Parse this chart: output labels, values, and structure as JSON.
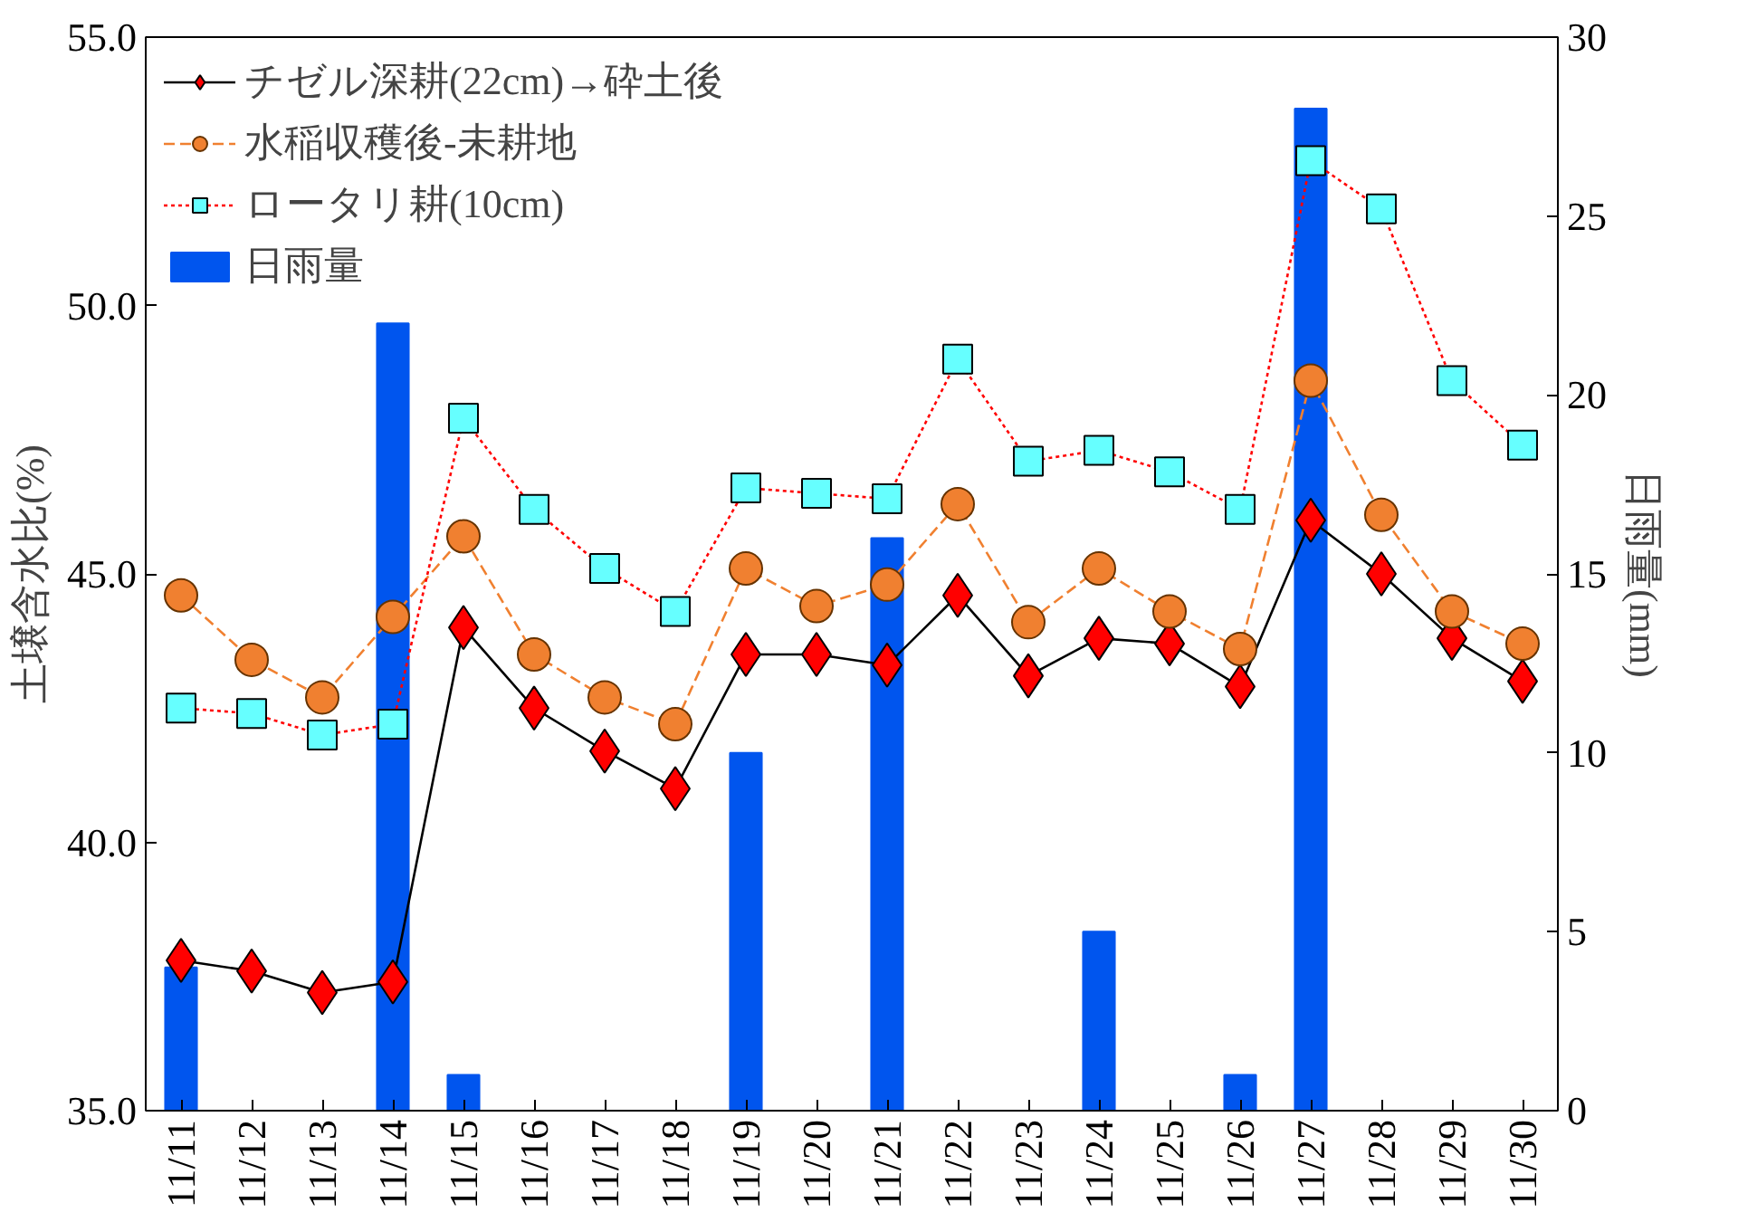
{
  "chart_data": {
    "type": "line",
    "categories": [
      "11/11",
      "11/12",
      "11/13",
      "11/14",
      "11/15",
      "11/16",
      "11/17",
      "11/18",
      "11/19",
      "11/20",
      "11/21",
      "11/22",
      "11/23",
      "11/24",
      "11/25",
      "11/26",
      "11/27",
      "11/28",
      "11/29",
      "11/30"
    ],
    "ylabel": "土壌含水比(%)",
    "y2label": "日雨量(mm)",
    "ylim": [
      35,
      55
    ],
    "yticks": [
      {
        "value": 35,
        "label": "35.0"
      },
      {
        "value": 40,
        "label": "40.0"
      },
      {
        "value": 45,
        "label": "45.0"
      },
      {
        "value": 50,
        "label": "50.0"
      },
      {
        "value": 55,
        "label": "55.0"
      }
    ],
    "y2lim": [
      0,
      30
    ],
    "y2ticks": [
      0,
      5,
      10,
      15,
      20,
      25,
      30
    ],
    "legend": "top left",
    "grid": false,
    "series": [
      {
        "name": "チゼル深耕(22cm)→砕土後",
        "marker": "diamond",
        "line_style": "solid",
        "color": "#ff0000",
        "values": [
          37.8,
          37.6,
          37.2,
          37.4,
          44.0,
          42.5,
          41.7,
          41.0,
          43.5,
          43.5,
          43.3,
          44.6,
          43.1,
          43.8,
          43.7,
          42.9,
          46.0,
          45.0,
          43.8,
          43.0
        ]
      },
      {
        "name": "水稲収穫後-未耕地",
        "marker": "circle",
        "line_style": "dashed",
        "color": "#f08030",
        "values": [
          44.6,
          43.4,
          42.7,
          44.2,
          45.7,
          43.5,
          42.7,
          42.2,
          45.1,
          44.4,
          44.8,
          46.3,
          44.1,
          45.1,
          44.3,
          43.6,
          48.6,
          46.1,
          44.3,
          43.7
        ]
      },
      {
        "name": "ロータリ耕(10cm)",
        "marker": "square",
        "line_style": "dotted",
        "color": "#66ffff",
        "values": [
          42.5,
          42.4,
          42.0,
          42.2,
          47.9,
          46.2,
          45.1,
          44.3,
          46.6,
          46.5,
          46.4,
          49.0,
          47.1,
          47.3,
          46.9,
          46.2,
          52.7,
          51.8,
          48.6,
          47.4
        ]
      },
      {
        "name": "日雨量",
        "type": "bar",
        "axis": "y2",
        "color": "#0055ee",
        "values": [
          4,
          0,
          0,
          22,
          1,
          0,
          0,
          0,
          10,
          0,
          16,
          0,
          0,
          5,
          0,
          1,
          28,
          0,
          0,
          0
        ]
      }
    ]
  }
}
